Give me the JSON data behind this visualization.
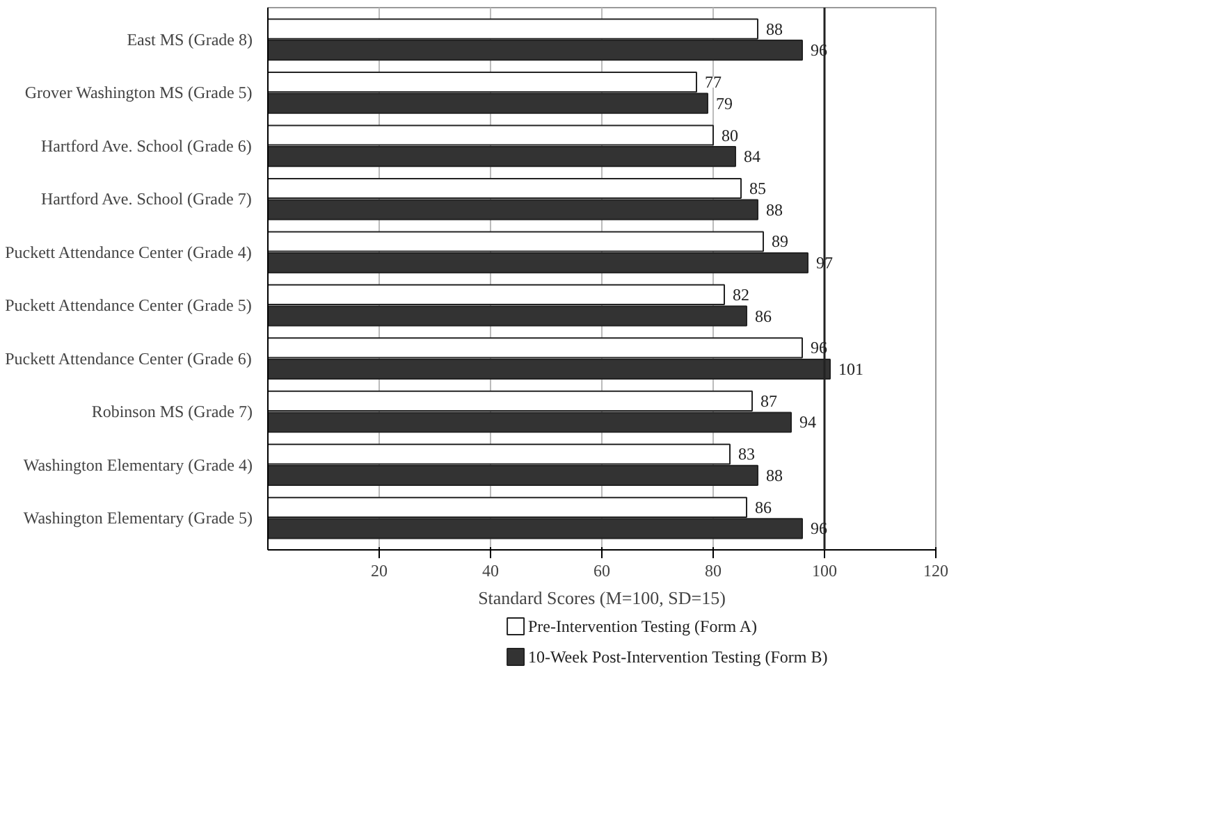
{
  "chart_data": {
    "type": "bar",
    "orientation": "horizontal",
    "xlabel": "Standard Scores (M=100, SD=15)",
    "categories": [
      "East MS (Grade 8)",
      "Grover Washington MS (Grade 5)",
      "Hartford Ave. School (Grade 6)",
      "Hartford Ave. School (Grade 7)",
      "Puckett Attendance Center (Grade 4)",
      "Puckett Attendance Center (Grade 5)",
      "Puckett Attendance Center (Grade 6)",
      "Robinson MS (Grade 7)",
      "Washington Elementary (Grade 4)",
      "Washington Elementary (Grade 5)"
    ],
    "series": [
      {
        "name": "Pre-Intervention Testing (Form A)",
        "color": "#ffffff",
        "values": [
          88,
          77,
          80,
          85,
          89,
          82,
          96,
          87,
          83,
          86
        ]
      },
      {
        "name": "10-Week Post-Intervention Testing (Form B)",
        "color": "#333333",
        "values": [
          96,
          79,
          84,
          88,
          97,
          86,
          101,
          94,
          88,
          96
        ]
      }
    ],
    "xlim": [
      0,
      120
    ],
    "xticks": [
      20,
      40,
      60,
      80,
      100,
      120
    ],
    "ref_lines": [
      {
        "axis": "x",
        "value": 100,
        "color": "#222222"
      }
    ],
    "grid": "x",
    "data_labels": true,
    "legend": "bottom"
  }
}
